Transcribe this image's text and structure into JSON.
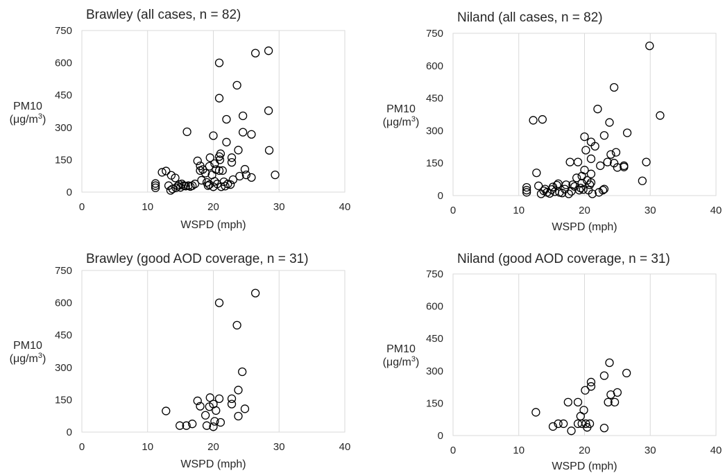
{
  "chart_data": [
    {
      "type": "scatter",
      "title": "Brawley (all cases, n = 82)",
      "xlabel": "WSPD (mph)",
      "ylabel": "PM10",
      "ylabel_unit": "(μg/m",
      "ylabel_sup": "3",
      "ylabel_close": ")",
      "xlim": [
        0,
        40
      ],
      "ylim": [
        0,
        750
      ],
      "xticks": [
        "0",
        "10",
        "20",
        "30",
        "40"
      ],
      "yticks": [
        "0",
        "150",
        "300",
        "450",
        "600",
        "750"
      ],
      "grid": "vertical",
      "marker_color": "#000000",
      "points": [
        [
          11.2,
          20
        ],
        [
          11.2,
          30
        ],
        [
          11.2,
          40
        ],
        [
          12.2,
          92
        ],
        [
          12.8,
          98
        ],
        [
          13.2,
          30
        ],
        [
          13.5,
          8
        ],
        [
          13.6,
          78
        ],
        [
          13.8,
          15
        ],
        [
          14.2,
          66
        ],
        [
          14.3,
          20
        ],
        [
          14.6,
          28
        ],
        [
          14.8,
          35
        ],
        [
          15.0,
          22
        ],
        [
          15.2,
          38
        ],
        [
          15.5,
          30
        ],
        [
          15.8,
          28
        ],
        [
          16.0,
          280
        ],
        [
          16.2,
          30
        ],
        [
          16.5,
          26
        ],
        [
          16.8,
          30
        ],
        [
          17.2,
          38
        ],
        [
          17.6,
          145
        ],
        [
          18.0,
          100
        ],
        [
          18.0,
          122
        ],
        [
          18.2,
          55
        ],
        [
          18.4,
          105
        ],
        [
          18.8,
          88
        ],
        [
          19.0,
          45
        ],
        [
          19.2,
          30
        ],
        [
          19.4,
          35
        ],
        [
          19.4,
          120
        ],
        [
          19.5,
          160
        ],
        [
          19.8,
          80
        ],
        [
          20.0,
          262
        ],
        [
          20.0,
          25
        ],
        [
          20.2,
          50
        ],
        [
          20.2,
          132
        ],
        [
          20.4,
          105
        ],
        [
          20.6,
          38
        ],
        [
          20.9,
          600
        ],
        [
          20.9,
          436
        ],
        [
          20.9,
          165
        ],
        [
          20.9,
          100
        ],
        [
          21.0,
          150
        ],
        [
          21.1,
          178
        ],
        [
          21.2,
          25
        ],
        [
          21.4,
          100
        ],
        [
          21.6,
          48
        ],
        [
          21.8,
          28
        ],
        [
          22.0,
          338
        ],
        [
          22.0,
          232
        ],
        [
          22.2,
          38
        ],
        [
          22.6,
          35
        ],
        [
          22.8,
          160
        ],
        [
          22.8,
          138
        ],
        [
          23.0,
          58
        ],
        [
          23.6,
          496
        ],
        [
          23.8,
          195
        ],
        [
          24.0,
          74
        ],
        [
          24.5,
          354
        ],
        [
          24.5,
          278
        ],
        [
          24.8,
          106
        ],
        [
          25.0,
          80
        ],
        [
          25.8,
          268
        ],
        [
          25.8,
          68
        ],
        [
          26.4,
          645
        ],
        [
          28.4,
          656
        ],
        [
          28.4,
          378
        ],
        [
          28.5,
          194
        ],
        [
          29.4,
          80
        ]
      ]
    },
    {
      "type": "scatter",
      "title": "Niland (all cases, n = 82)",
      "xlabel": "WSPD (mph)",
      "ylabel": "PM10",
      "ylabel_unit": "(μg/m",
      "ylabel_sup": "3",
      "ylabel_close": ")",
      "xlim": [
        0,
        40
      ],
      "ylim": [
        0,
        750
      ],
      "xticks": [
        "0",
        "10",
        "20",
        "30",
        "40"
      ],
      "yticks": [
        "0",
        "150",
        "300",
        "450",
        "600",
        "750"
      ],
      "grid": "vertical",
      "marker_color": "#000000",
      "points": [
        [
          11.2,
          15
        ],
        [
          11.2,
          25
        ],
        [
          11.2,
          38
        ],
        [
          12.2,
          348
        ],
        [
          12.7,
          105
        ],
        [
          13.0,
          45
        ],
        [
          13.4,
          8
        ],
        [
          13.6,
          352
        ],
        [
          13.8,
          22
        ],
        [
          14.0,
          30
        ],
        [
          14.3,
          15
        ],
        [
          14.7,
          10
        ],
        [
          15.0,
          28
        ],
        [
          15.2,
          40
        ],
        [
          15.5,
          18
        ],
        [
          15.8,
          48
        ],
        [
          16.0,
          55
        ],
        [
          16.2,
          15
        ],
        [
          16.6,
          12
        ],
        [
          17.0,
          30
        ],
        [
          17.2,
          50
        ],
        [
          17.6,
          8
        ],
        [
          17.8,
          155
        ],
        [
          18.0,
          20
        ],
        [
          18.2,
          50
        ],
        [
          18.5,
          42
        ],
        [
          18.8,
          82
        ],
        [
          19.0,
          155
        ],
        [
          19.2,
          25
        ],
        [
          19.4,
          35
        ],
        [
          19.6,
          90
        ],
        [
          19.6,
          58
        ],
        [
          19.8,
          28
        ],
        [
          20.0,
          272
        ],
        [
          20.0,
          118
        ],
        [
          20.2,
          210
        ],
        [
          20.4,
          70
        ],
        [
          20.6,
          25
        ],
        [
          20.8,
          50
        ],
        [
          21.0,
          248
        ],
        [
          21.0,
          170
        ],
        [
          21.0,
          100
        ],
        [
          21.0,
          60
        ],
        [
          21.2,
          8
        ],
        [
          21.6,
          228
        ],
        [
          22.0,
          400
        ],
        [
          22.2,
          15
        ],
        [
          22.4,
          138
        ],
        [
          22.8,
          25
        ],
        [
          23.0,
          278
        ],
        [
          23.0,
          30
        ],
        [
          23.5,
          155
        ],
        [
          23.8,
          338
        ],
        [
          24.0,
          190
        ],
        [
          24.5,
          500
        ],
        [
          24.5,
          150
        ],
        [
          24.8,
          200
        ],
        [
          25.0,
          130
        ],
        [
          26.0,
          132
        ],
        [
          26.0,
          138
        ],
        [
          26.5,
          290
        ],
        [
          28.8,
          68
        ],
        [
          29.4,
          155
        ],
        [
          29.9,
          692
        ],
        [
          31.5,
          370
        ]
      ]
    },
    {
      "type": "scatter",
      "title": "Brawley (good AOD coverage, n = 31)",
      "xlabel": "WSPD (mph)",
      "ylabel": "PM10",
      "ylabel_unit": "(μg/m",
      "ylabel_sup": "3",
      "ylabel_close": ")",
      "xlim": [
        0,
        40
      ],
      "ylim": [
        0,
        750
      ],
      "xticks": [
        "0",
        "10",
        "20",
        "30",
        "40"
      ],
      "yticks": [
        "0",
        "150",
        "300",
        "450",
        "600",
        "750"
      ],
      "grid": "vertical",
      "marker_color": "#000000",
      "points": [
        [
          12.8,
          98
        ],
        [
          14.9,
          30
        ],
        [
          15.9,
          30
        ],
        [
          16.8,
          38
        ],
        [
          17.6,
          145
        ],
        [
          18.0,
          120
        ],
        [
          18.8,
          78
        ],
        [
          19.0,
          30
        ],
        [
          19.4,
          118
        ],
        [
          19.5,
          160
        ],
        [
          20.0,
          25
        ],
        [
          20.0,
          130
        ],
        [
          20.2,
          50
        ],
        [
          20.4,
          100
        ],
        [
          20.9,
          600
        ],
        [
          20.9,
          155
        ],
        [
          21.1,
          45
        ],
        [
          22.8,
          155
        ],
        [
          22.8,
          130
        ],
        [
          23.6,
          496
        ],
        [
          23.8,
          195
        ],
        [
          23.8,
          74
        ],
        [
          24.4,
          280
        ],
        [
          24.8,
          108
        ],
        [
          26.4,
          645
        ]
      ]
    },
    {
      "type": "scatter",
      "title": "Niland (good AOD coverage, n = 31)",
      "xlabel": "WSPD (mph)",
      "ylabel": "PM10",
      "ylabel_unit": "(μg/m",
      "ylabel_sup": "3",
      "ylabel_close": ")",
      "xlim": [
        0,
        40
      ],
      "ylim": [
        0,
        750
      ],
      "xticks": [
        "0",
        "10",
        "20",
        "30",
        "40"
      ],
      "yticks": [
        "0",
        "150",
        "300",
        "450",
        "600",
        "750"
      ],
      "grid": "vertical",
      "marker_color": "#000000",
      "points": [
        [
          12.6,
          108
        ],
        [
          15.2,
          42
        ],
        [
          16.0,
          55
        ],
        [
          16.8,
          55
        ],
        [
          17.5,
          155
        ],
        [
          18.0,
          22
        ],
        [
          19.0,
          55
        ],
        [
          19.0,
          155
        ],
        [
          19.4,
          90
        ],
        [
          19.6,
          55
        ],
        [
          19.9,
          118
        ],
        [
          20.1,
          210
        ],
        [
          20.2,
          55
        ],
        [
          20.4,
          38
        ],
        [
          20.8,
          55
        ],
        [
          21.0,
          228
        ],
        [
          21.0,
          248
        ],
        [
          23.0,
          278
        ],
        [
          23.0,
          35
        ],
        [
          23.6,
          155
        ],
        [
          23.8,
          338
        ],
        [
          24.0,
          190
        ],
        [
          24.6,
          155
        ],
        [
          25.0,
          200
        ],
        [
          26.4,
          290
        ]
      ]
    }
  ]
}
